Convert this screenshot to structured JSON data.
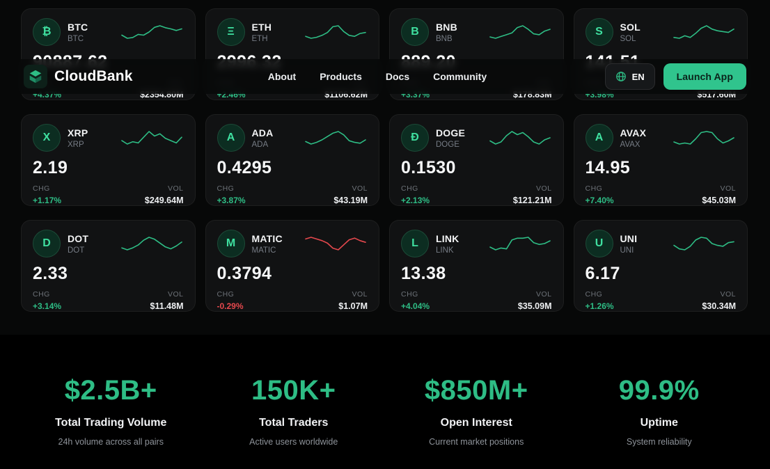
{
  "header": {
    "brand": "CloudBank",
    "nav": [
      "About",
      "Products",
      "Docs",
      "Community"
    ],
    "language": "EN",
    "launch_app": "Launch App"
  },
  "labels": {
    "chg": "CHG",
    "vol": "VOL"
  },
  "colors": {
    "accent": "#2ebd85",
    "negative": "#e5484d"
  },
  "tickers": [
    {
      "symbol": "BTC",
      "sub": "BTC",
      "glyph": "₿",
      "price": "90887.62",
      "chg": "+4.37%",
      "vol": "$2354.80M",
      "trend": "up",
      "spark": [
        38,
        30,
        32,
        40,
        38,
        46,
        58,
        62,
        57,
        54,
        50,
        54
      ]
    },
    {
      "symbol": "ETH",
      "sub": "ETH",
      "glyph": "Ξ",
      "price": "2996.32",
      "chg": "+2.46%",
      "vol": "$1106.62M",
      "trend": "up",
      "spark": [
        40,
        36,
        38,
        42,
        48,
        60,
        62,
        50,
        42,
        40,
        46,
        48
      ]
    },
    {
      "symbol": "BNB",
      "sub": "BNB",
      "glyph": "B",
      "price": "889.20",
      "chg": "+3.37%",
      "vol": "$178.83M",
      "trend": "up",
      "spark": [
        35,
        32,
        36,
        40,
        44,
        56,
        60,
        52,
        42,
        40,
        48,
        52
      ]
    },
    {
      "symbol": "SOL",
      "sub": "SOL",
      "glyph": "S",
      "price": "141.51",
      "chg": "+3.98%",
      "vol": "$517.60M",
      "trend": "up",
      "spark": [
        30,
        28,
        34,
        30,
        40,
        52,
        58,
        50,
        46,
        44,
        42,
        50
      ]
    },
    {
      "symbol": "XRP",
      "sub": "XRP",
      "glyph": "X",
      "price": "2.19",
      "chg": "+1.17%",
      "vol": "$249.64M",
      "trend": "up",
      "spark": [
        44,
        38,
        42,
        40,
        50,
        60,
        52,
        56,
        48,
        44,
        40,
        50
      ]
    },
    {
      "symbol": "ADA",
      "sub": "ADA",
      "glyph": "A",
      "price": "0.4295",
      "chg": "+3.87%",
      "vol": "$43.19M",
      "trend": "up",
      "spark": [
        40,
        34,
        38,
        44,
        52,
        60,
        64,
        56,
        42,
        38,
        36,
        44
      ]
    },
    {
      "symbol": "DOGE",
      "sub": "DOGE",
      "glyph": "Đ",
      "price": "0.1530",
      "chg": "+2.13%",
      "vol": "$121.21M",
      "trend": "up",
      "spark": [
        42,
        36,
        40,
        52,
        60,
        54,
        58,
        50,
        40,
        36,
        44,
        48
      ]
    },
    {
      "symbol": "AVAX",
      "sub": "AVAX",
      "glyph": "A",
      "price": "14.95",
      "chg": "+7.40%",
      "vol": "$45.03M",
      "trend": "up",
      "spark": [
        38,
        34,
        36,
        34,
        44,
        56,
        58,
        56,
        44,
        36,
        40,
        46
      ]
    },
    {
      "symbol": "DOT",
      "sub": "DOT",
      "glyph": "D",
      "price": "2.33",
      "chg": "+3.14%",
      "vol": "$11.48M",
      "trend": "up",
      "spark": [
        40,
        36,
        40,
        46,
        56,
        62,
        58,
        50,
        42,
        38,
        44,
        52
      ]
    },
    {
      "symbol": "MATIC",
      "sub": "MATIC",
      "glyph": "M",
      "price": "0.3794",
      "chg": "-0.29%",
      "vol": "$1.07M",
      "trend": "down",
      "spark": [
        60,
        64,
        60,
        56,
        50,
        38,
        34,
        46,
        58,
        62,
        56,
        52
      ]
    },
    {
      "symbol": "LINK",
      "sub": "LINK",
      "glyph": "L",
      "price": "13.38",
      "chg": "+4.04%",
      "vol": "$35.09M",
      "trend": "up",
      "spark": [
        36,
        30,
        34,
        32,
        52,
        56,
        56,
        58,
        46,
        42,
        44,
        50
      ]
    },
    {
      "symbol": "UNI",
      "sub": "UNI",
      "glyph": "U",
      "price": "6.17",
      "chg": "+1.26%",
      "vol": "$30.34M",
      "trend": "up",
      "spark": [
        40,
        32,
        30,
        38,
        52,
        58,
        56,
        44,
        40,
        38,
        46,
        48
      ]
    }
  ],
  "stats": [
    {
      "value": "$2.5B+",
      "label": "Total Trading Volume",
      "sub": "24h volume across all pairs"
    },
    {
      "value": "150K+",
      "label": "Total Traders",
      "sub": "Active users worldwide"
    },
    {
      "value": "$850M+",
      "label": "Open Interest",
      "sub": "Current market positions"
    },
    {
      "value": "99.9%",
      "label": "Uptime",
      "sub": "System reliability"
    }
  ]
}
